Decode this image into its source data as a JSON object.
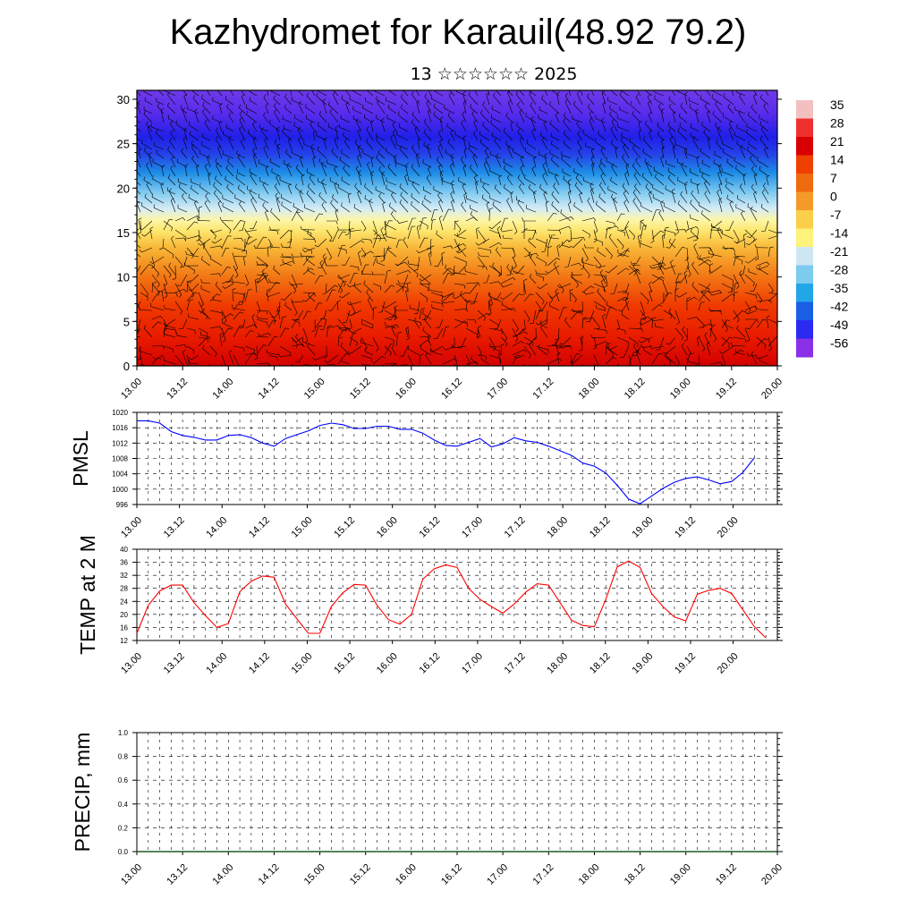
{
  "header": {
    "title": "Kazhydromet for Karauil(48.92 79.2)",
    "subtitle": "13 ☆☆☆☆☆☆ 2025"
  },
  "colors": {
    "pmsl_line": "#0000ff",
    "temp_line": "#ff0000",
    "wind_barb": "#000000",
    "grid_dash": "#000000"
  },
  "chart_data": [
    {
      "id": "cross-section",
      "type": "heatmap",
      "title": "",
      "xlabel": "",
      "ylabel": "",
      "x_ticks": [
        "13.00",
        "13.12",
        "14.00",
        "14.12",
        "15.00",
        "15.12",
        "16.00",
        "16.12",
        "17.00",
        "17.12",
        "18.00",
        "18.12",
        "19.00",
        "19.12",
        "20.00"
      ],
      "y_ticks": [
        "0",
        "5",
        "10",
        "15",
        "20",
        "25",
        "30"
      ],
      "ylim": [
        0,
        31
      ],
      "overlay": "wind-barbs",
      "colorbar_labels": [
        "35",
        "28",
        "21",
        "14",
        "7",
        "0",
        "-7",
        "-14",
        "-21",
        "-28",
        "-35",
        "-42",
        "-49",
        "-56"
      ],
      "colorbar_colors": [
        "#f3c0c0",
        "#ee3030",
        "#d80000",
        "#f04000",
        "#f06a10",
        "#f49a2a",
        "#fbcf4a",
        "#fdf27a",
        "#cfe6f4",
        "#7ecbf0",
        "#22a6e8",
        "#1a5fe6",
        "#2a2af0",
        "#8a30e8"
      ]
    },
    {
      "id": "pmsl",
      "type": "line",
      "ylabel": "PMSL",
      "ylim": [
        996,
        1020
      ],
      "y_ticks": [
        "996",
        "1000",
        "1004",
        "1008",
        "1012",
        "1016",
        "1020"
      ],
      "x_ticks": [
        "13.00",
        "13.12",
        "14.00",
        "14.12",
        "15.00",
        "15.12",
        "16.00",
        "16.12",
        "17.00",
        "17.12",
        "18.00",
        "18.12",
        "19.00",
        "19.12",
        "20.00"
      ],
      "x_range": [
        0,
        28
      ],
      "grid": true,
      "series": [
        {
          "x": [
            0,
            0.5,
            1,
            1.5,
            2,
            2.5,
            3,
            3.5,
            4,
            4.5,
            5,
            5.5,
            6,
            6.5,
            7,
            7.5,
            8,
            8.5,
            9,
            9.5,
            10,
            10.5,
            11,
            11.5,
            12,
            12.5,
            13,
            13.5,
            14,
            14.5,
            15,
            15.5,
            16,
            16.5,
            17,
            17.5,
            18,
            18.5,
            19,
            19.5,
            20,
            20.5,
            21,
            21.5,
            22,
            22.5,
            23,
            23.5,
            24,
            24.5,
            25,
            25.5,
            26,
            26.5,
            27
          ],
          "values": [
            1017.8,
            1017.8,
            1017.2,
            1015.0,
            1014.0,
            1013.5,
            1012.8,
            1012.8,
            1014.0,
            1014.2,
            1013.4,
            1012.0,
            1011.2,
            1013.2,
            1014.2,
            1015.2,
            1016.6,
            1017.2,
            1016.8,
            1015.8,
            1015.8,
            1016.4,
            1016.4,
            1015.6,
            1015.6,
            1014.6,
            1012.8,
            1011.4,
            1011.2,
            1012.2,
            1013.2,
            1011.0,
            1011.8,
            1013.4,
            1012.6,
            1012.2,
            1011.2,
            1010.0,
            1008.8,
            1006.8,
            1006.0,
            1004.2,
            1001.0,
            997.4,
            996.2,
            998.2,
            1000.2,
            1001.8,
            1002.8,
            1003.2,
            1002.4,
            1001.4,
            1002.0,
            1004.4,
            1008.2
          ]
        }
      ]
    },
    {
      "id": "temp-2m",
      "type": "line",
      "ylabel": "TEMP at 2 M",
      "ylim": [
        12,
        40
      ],
      "y_ticks": [
        "12",
        "16",
        "20",
        "24",
        "28",
        "32",
        "36",
        "40"
      ],
      "x_ticks": [
        "13.00",
        "13.12",
        "14.00",
        "14.12",
        "15.00",
        "15.12",
        "16.00",
        "16.12",
        "17.00",
        "17.12",
        "18.00",
        "18.12",
        "19.00",
        "19.12",
        "20.00"
      ],
      "x_range": [
        0,
        28
      ],
      "grid": true,
      "series": [
        {
          "x": [
            0,
            0.5,
            1,
            1.5,
            2,
            2.5,
            3,
            3.5,
            4,
            4.5,
            5,
            5.5,
            6,
            6.5,
            7,
            7.5,
            8,
            8.5,
            9,
            9.5,
            10,
            10.5,
            11,
            11.5,
            12,
            12.5,
            13,
            13.5,
            14,
            14.5,
            15,
            15.5,
            16,
            16.5,
            17,
            17.5,
            18,
            18.5,
            19,
            19.5,
            20,
            20.5,
            21,
            21.5,
            22,
            22.5,
            23,
            23.5,
            24,
            24.5,
            25,
            25.5,
            26,
            26.5,
            27,
            27.5
          ],
          "values": [
            14.2,
            22.8,
            27.2,
            29.0,
            29.0,
            23.6,
            19.6,
            16.0,
            17.2,
            27.0,
            30.2,
            31.8,
            31.4,
            23.2,
            18.6,
            14.2,
            14.2,
            22.4,
            26.6,
            29.2,
            29.0,
            22.8,
            18.4,
            17.0,
            20.0,
            30.8,
            34.0,
            35.2,
            34.4,
            28.0,
            24.6,
            22.4,
            20.4,
            23.2,
            26.8,
            29.4,
            29.0,
            23.6,
            18.2,
            16.6,
            16.2,
            24.6,
            34.6,
            36.4,
            34.4,
            26.4,
            22.4,
            19.2,
            18.0,
            26.2,
            27.4,
            28.0,
            26.4,
            21.4,
            16.2,
            12.8
          ]
        }
      ]
    },
    {
      "id": "precip",
      "type": "line",
      "ylabel": "PRECIP, mm",
      "ylim": [
        0,
        1
      ],
      "y_ticks": [
        "0.0",
        "0.2",
        "0.4",
        "0.6",
        "0.8",
        "1.0"
      ],
      "x_ticks": [
        "13.00",
        "13.12",
        "14.00",
        "14.12",
        "15.00",
        "15.12",
        "16.00",
        "16.12",
        "17.00",
        "17.12",
        "18.00",
        "18.12",
        "19.00",
        "19.12",
        "20.00"
      ],
      "x_range": [
        0,
        28
      ],
      "grid": true,
      "series": [
        {
          "values": [
            0
          ]
        }
      ]
    }
  ]
}
